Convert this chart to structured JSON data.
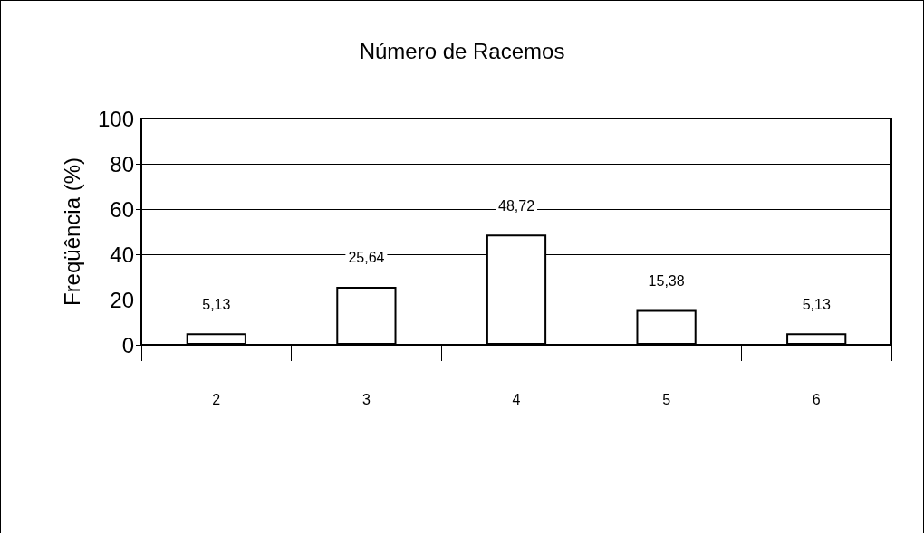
{
  "chart_data": {
    "type": "bar",
    "title": "Número de Racemos",
    "ylabel": "Freqüência (%)",
    "categories": [
      "2",
      "3",
      "4",
      "5",
      "6"
    ],
    "values": [
      5.13,
      25.64,
      48.72,
      15.38,
      5.13
    ],
    "value_labels": [
      "5,13",
      "25,64",
      "48,72",
      "15,38",
      "5,13"
    ],
    "color": "#ffffff",
    "ylim": [
      0,
      100
    ],
    "yticks": [
      0,
      20,
      40,
      60,
      80,
      100
    ],
    "grid": "y"
  }
}
